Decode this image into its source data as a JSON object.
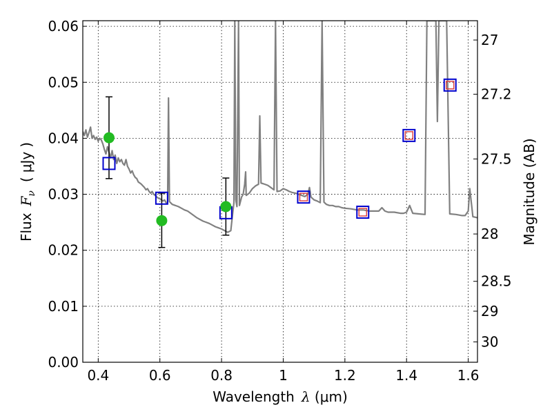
{
  "chart_data": {
    "type": "scatter",
    "xlabel": {
      "prefix": "Wavelength",
      "symbol": "λ",
      "unit_open": " (",
      "unit": "μm",
      "unit_close": ")"
    },
    "ylabel": {
      "prefix": "Flux",
      "symbol": "F",
      "subscript": "ν",
      "unit_open": "(",
      "unit": "μJy",
      "unit_close": ")"
    },
    "y2label": "Magnitude (AB)",
    "xlim": [
      0.35,
      1.63
    ],
    "ylim": [
      0.0,
      0.061
    ],
    "x_ticks": [
      "0.4",
      "0.6",
      "0.8",
      "1",
      "1.2",
      "1.4",
      "1.6"
    ],
    "y_ticks": [
      "0.00",
      "0.01",
      "0.02",
      "0.03",
      "0.04",
      "0.05",
      "0.06"
    ],
    "y2_ticks": [
      "27",
      "27.2",
      "27.5",
      "28",
      "28.5",
      "29",
      "30"
    ],
    "grid": true,
    "colors": {
      "spectrum": "#808080",
      "observed": "#22bb22",
      "model_square": "#0000cc",
      "model_inner": "#dd4444",
      "errorbar": "#000000"
    },
    "series": [
      {
        "kind": "spectrum",
        "points": [
          [
            0.35,
            0.0412
          ],
          [
            0.355,
            0.0405
          ],
          [
            0.36,
            0.0415
          ],
          [
            0.365,
            0.0402
          ],
          [
            0.37,
            0.041
          ],
          [
            0.375,
            0.042
          ],
          [
            0.38,
            0.04
          ],
          [
            0.385,
            0.0405
          ],
          [
            0.39,
            0.0398
          ],
          [
            0.395,
            0.0402
          ],
          [
            0.4,
            0.0395
          ],
          [
            0.405,
            0.04
          ],
          [
            0.41,
            0.0397
          ],
          [
            0.415,
            0.039
          ],
          [
            0.42,
            0.038
          ],
          [
            0.425,
            0.0372
          ],
          [
            0.43,
            0.0385
          ],
          [
            0.435,
            0.0375
          ],
          [
            0.44,
            0.0365
          ],
          [
            0.445,
            0.0378
          ],
          [
            0.45,
            0.0362
          ],
          [
            0.455,
            0.037
          ],
          [
            0.46,
            0.0355
          ],
          [
            0.465,
            0.0365
          ],
          [
            0.47,
            0.0358
          ],
          [
            0.475,
            0.0362
          ],
          [
            0.48,
            0.0355
          ],
          [
            0.485,
            0.0352
          ],
          [
            0.49,
            0.0362
          ],
          [
            0.495,
            0.035
          ],
          [
            0.5,
            0.0345
          ],
          [
            0.505,
            0.0338
          ],
          [
            0.51,
            0.0342
          ],
          [
            0.515,
            0.0335
          ],
          [
            0.52,
            0.033
          ],
          [
            0.525,
            0.0328
          ],
          [
            0.53,
            0.0322
          ],
          [
            0.535,
            0.032
          ],
          [
            0.54,
            0.0318
          ],
          [
            0.545,
            0.0315
          ],
          [
            0.55,
            0.0312
          ],
          [
            0.555,
            0.0308
          ],
          [
            0.56,
            0.031
          ],
          [
            0.565,
            0.0305
          ],
          [
            0.57,
            0.0302
          ],
          [
            0.575,
            0.0305
          ],
          [
            0.58,
            0.03
          ],
          [
            0.585,
            0.0298
          ],
          [
            0.59,
            0.0295
          ],
          [
            0.595,
            0.0293
          ],
          [
            0.6,
            0.0292
          ],
          [
            0.605,
            0.029
          ],
          [
            0.61,
            0.0288
          ],
          [
            0.615,
            0.029
          ],
          [
            0.62,
            0.0285
          ],
          [
            0.625,
            0.0284
          ],
          [
            0.628,
            0.0472
          ],
          [
            0.631,
            0.0287
          ],
          [
            0.64,
            0.0282
          ],
          [
            0.65,
            0.028
          ],
          [
            0.66,
            0.0278
          ],
          [
            0.67,
            0.0275
          ],
          [
            0.68,
            0.0272
          ],
          [
            0.69,
            0.027
          ],
          [
            0.7,
            0.0266
          ],
          [
            0.71,
            0.0262
          ],
          [
            0.72,
            0.0258
          ],
          [
            0.73,
            0.0255
          ],
          [
            0.74,
            0.0252
          ],
          [
            0.75,
            0.025
          ],
          [
            0.76,
            0.0248
          ],
          [
            0.77,
            0.0245
          ],
          [
            0.78,
            0.0242
          ],
          [
            0.79,
            0.024
          ],
          [
            0.8,
            0.0238
          ],
          [
            0.81,
            0.0235
          ],
          [
            0.82,
            0.0232
          ],
          [
            0.83,
            0.0235
          ],
          [
            0.835,
            0.026
          ],
          [
            0.84,
            0.0285
          ],
          [
            0.843,
            0.061
          ],
          [
            0.846,
            0.029
          ],
          [
            0.85,
            0.0278
          ],
          [
            0.855,
            0.061
          ],
          [
            0.858,
            0.028
          ],
          [
            0.865,
            0.0295
          ],
          [
            0.87,
            0.03
          ],
          [
            0.875,
            0.0318
          ],
          [
            0.878,
            0.034
          ],
          [
            0.88,
            0.0298
          ],
          [
            0.89,
            0.0302
          ],
          [
            0.9,
            0.031
          ],
          [
            0.91,
            0.0315
          ],
          [
            0.92,
            0.0318
          ],
          [
            0.924,
            0.044
          ],
          [
            0.928,
            0.032
          ],
          [
            0.94,
            0.0318
          ],
          [
            0.95,
            0.0316
          ],
          [
            0.96,
            0.0312
          ],
          [
            0.97,
            0.0308
          ],
          [
            0.975,
            0.061
          ],
          [
            0.98,
            0.0305
          ],
          [
            0.99,
            0.0306
          ],
          [
            1.0,
            0.031
          ],
          [
            1.01,
            0.0308
          ],
          [
            1.02,
            0.0305
          ],
          [
            1.03,
            0.0303
          ],
          [
            1.04,
            0.0302
          ],
          [
            1.05,
            0.03
          ],
          [
            1.06,
            0.0298
          ],
          [
            1.07,
            0.0296
          ],
          [
            1.08,
            0.03
          ],
          [
            1.085,
            0.0312
          ],
          [
            1.09,
            0.0295
          ],
          [
            1.1,
            0.029
          ],
          [
            1.11,
            0.0288
          ],
          [
            1.12,
            0.0285
          ],
          [
            1.126,
            0.061
          ],
          [
            1.132,
            0.0286
          ],
          [
            1.14,
            0.0282
          ],
          [
            1.15,
            0.028
          ],
          [
            1.16,
            0.028
          ],
          [
            1.17,
            0.0278
          ],
          [
            1.18,
            0.0278
          ],
          [
            1.19,
            0.0276
          ],
          [
            1.2,
            0.0275
          ],
          [
            1.22,
            0.0274
          ],
          [
            1.24,
            0.0272
          ],
          [
            1.26,
            0.0272
          ],
          [
            1.28,
            0.027
          ],
          [
            1.3,
            0.027
          ],
          [
            1.31,
            0.027
          ],
          [
            1.32,
            0.0276
          ],
          [
            1.33,
            0.027
          ],
          [
            1.34,
            0.0268
          ],
          [
            1.36,
            0.0268
          ],
          [
            1.38,
            0.0266
          ],
          [
            1.39,
            0.0266
          ],
          [
            1.4,
            0.0268
          ],
          [
            1.41,
            0.028
          ],
          [
            1.42,
            0.0266
          ],
          [
            1.44,
            0.0265
          ],
          [
            1.46,
            0.0264
          ],
          [
            1.466,
            0.061
          ],
          [
            1.472,
            0.061
          ],
          [
            1.48,
            0.061
          ],
          [
            1.49,
            0.061
          ],
          [
            1.495,
            0.061
          ],
          [
            1.5,
            0.043
          ],
          [
            1.505,
            0.061
          ],
          [
            1.51,
            0.061
          ],
          [
            1.52,
            0.061
          ],
          [
            1.53,
            0.061
          ],
          [
            1.54,
            0.0265
          ],
          [
            1.56,
            0.0264
          ],
          [
            1.58,
            0.0262
          ],
          [
            1.59,
            0.0262
          ],
          [
            1.6,
            0.027
          ],
          [
            1.605,
            0.031
          ],
          [
            1.612,
            0.0275
          ],
          [
            1.615,
            0.026
          ],
          [
            1.63,
            0.0258
          ]
        ]
      },
      {
        "kind": "observed",
        "points": [
          {
            "x": 0.435,
            "y": 0.0401
          },
          {
            "x": 0.606,
            "y": 0.0253
          },
          {
            "x": 0.814,
            "y": 0.0278
          }
        ]
      },
      {
        "kind": "errorbars",
        "points": [
          {
            "x": 0.435,
            "low": 0.0328,
            "high": 0.0474
          },
          {
            "x": 0.606,
            "low": 0.0205,
            "high": 0.0302
          },
          {
            "x": 0.814,
            "low": 0.0227,
            "high": 0.0329
          }
        ]
      },
      {
        "kind": "model_bands",
        "points": [
          {
            "x": 0.435,
            "y": 0.0355,
            "inner": false
          },
          {
            "x": 0.606,
            "y": 0.0293,
            "inner": false
          },
          {
            "x": 0.814,
            "y": 0.0267,
            "inner": false
          },
          {
            "x": 1.066,
            "y": 0.0295,
            "inner": true
          },
          {
            "x": 1.258,
            "y": 0.0268,
            "inner": true
          },
          {
            "x": 1.408,
            "y": 0.0405,
            "inner": true
          },
          {
            "x": 1.541,
            "y": 0.0495,
            "inner": true
          }
        ]
      }
    ]
  }
}
